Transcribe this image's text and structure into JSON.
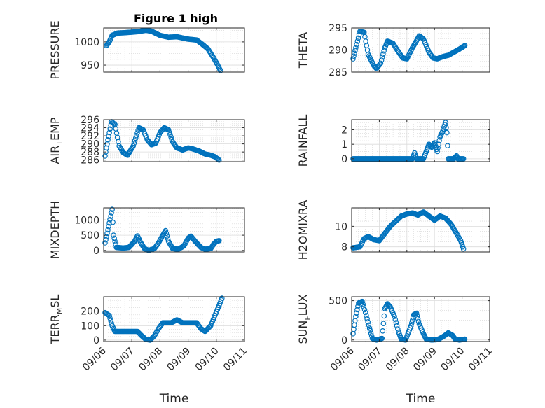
{
  "figure": {
    "title": "Figure 1 high",
    "marker_color": "#0072BD"
  },
  "chart_data": [
    {
      "type": "scatter",
      "ylabel": "PRESSURE",
      "xlim": [
        0,
        5
      ],
      "ylim": [
        935,
        1030
      ],
      "yticks": [
        950,
        1000
      ],
      "xticks": [
        0,
        1,
        2,
        3,
        4,
        5
      ],
      "xticklabels": [],
      "xlabel": "",
      "grid": true,
      "keypoints": [
        [
          0.1,
          992
        ],
        [
          0.2,
          1000
        ],
        [
          0.3,
          1014
        ],
        [
          0.5,
          1019
        ],
        [
          0.8,
          1020
        ],
        [
          1.2,
          1022
        ],
        [
          1.5,
          1025
        ],
        [
          1.7,
          1023
        ],
        [
          2.0,
          1014
        ],
        [
          2.3,
          1010
        ],
        [
          2.6,
          1011
        ],
        [
          3.0,
          1006
        ],
        [
          3.3,
          1004
        ],
        [
          3.5,
          995
        ],
        [
          3.7,
          985
        ],
        [
          3.9,
          966
        ],
        [
          4.05,
          950
        ],
        [
          4.15,
          938
        ]
      ]
    },
    {
      "type": "scatter",
      "ylabel": "THETA",
      "xlim": [
        0,
        5
      ],
      "ylim": [
        285,
        295
      ],
      "yticks": [
        285,
        290,
        295
      ],
      "xticks": [
        0,
        1,
        2,
        3,
        4,
        5
      ],
      "xticklabels": [],
      "xlabel": "",
      "grid": true,
      "keypoints": [
        [
          0.05,
          288
        ],
        [
          0.15,
          290.5
        ],
        [
          0.3,
          294.2
        ],
        [
          0.45,
          294
        ],
        [
          0.6,
          289
        ],
        [
          0.8,
          286.5
        ],
        [
          0.9,
          285.8
        ],
        [
          1.05,
          287
        ],
        [
          1.2,
          290.5
        ],
        [
          1.3,
          292
        ],
        [
          1.5,
          291.5
        ],
        [
          1.65,
          290
        ],
        [
          1.85,
          288.2
        ],
        [
          2.0,
          288
        ],
        [
          2.2,
          290.5
        ],
        [
          2.45,
          293.2
        ],
        [
          2.6,
          292.5
        ],
        [
          2.8,
          289.5
        ],
        [
          2.95,
          288.2
        ],
        [
          3.1,
          288
        ],
        [
          3.3,
          288.5
        ],
        [
          3.5,
          288.8
        ],
        [
          3.7,
          289.5
        ],
        [
          3.9,
          290.2
        ],
        [
          4.1,
          291
        ]
      ]
    },
    {
      "type": "scatter",
      "ylabel": "AIR_TEMP",
      "xlim": [
        0,
        5
      ],
      "ylim": [
        285.6,
        296
      ],
      "yticks": [
        286,
        288,
        290,
        292,
        294,
        296
      ],
      "xticks": [
        0,
        1,
        2,
        3,
        4,
        5
      ],
      "xticklabels": [],
      "xlabel": "",
      "grid": true,
      "keypoints": [
        [
          0.05,
          287
        ],
        [
          0.15,
          291
        ],
        [
          0.28,
          295.5
        ],
        [
          0.4,
          294.8
        ],
        [
          0.55,
          289.5
        ],
        [
          0.7,
          287.8
        ],
        [
          0.85,
          287.2
        ],
        [
          1.05,
          289.5
        ],
        [
          1.25,
          294
        ],
        [
          1.4,
          293.5
        ],
        [
          1.55,
          291
        ],
        [
          1.7,
          289.8
        ],
        [
          1.85,
          290.2
        ],
        [
          2.0,
          292.8
        ],
        [
          2.15,
          294
        ],
        [
          2.3,
          293.5
        ],
        [
          2.45,
          290.5
        ],
        [
          2.6,
          289
        ],
        [
          2.8,
          288.5
        ],
        [
          3.0,
          289
        ],
        [
          3.15,
          288.8
        ],
        [
          3.4,
          288.2
        ],
        [
          3.6,
          287.5
        ],
        [
          3.8,
          287.2
        ],
        [
          3.95,
          286.8
        ],
        [
          4.1,
          286
        ]
      ]
    },
    {
      "type": "scatter",
      "ylabel": "RAINFALL",
      "xlim": [
        0,
        5
      ],
      "ylim": [
        -0.2,
        2.7
      ],
      "yticks": [
        0,
        1,
        2
      ],
      "xticks": [
        0,
        1,
        2,
        3,
        4,
        5
      ],
      "xticklabels": [],
      "xlabel": "",
      "grid": true,
      "keypoints": [
        [
          0.05,
          0
        ],
        [
          2.2,
          0
        ],
        [
          2.28,
          0.4
        ],
        [
          2.35,
          0
        ],
        [
          2.6,
          0
        ],
        [
          2.7,
          0.5
        ],
        [
          2.8,
          1.0
        ],
        [
          2.9,
          0.8
        ],
        [
          3.0,
          1.1
        ],
        [
          3.1,
          0.5
        ],
        [
          3.2,
          1.5
        ],
        [
          3.3,
          1.9
        ],
        [
          3.4,
          2.5
        ],
        [
          3.45,
          1.8
        ],
        [
          3.5,
          0
        ],
        [
          3.7,
          0
        ],
        [
          3.8,
          0.2
        ],
        [
          3.85,
          0
        ],
        [
          4.05,
          0
        ]
      ]
    },
    {
      "type": "scatter",
      "ylabel": "MIXDEPTH",
      "xlim": [
        0,
        5
      ],
      "ylim": [
        -50,
        1400
      ],
      "yticks": [
        0,
        500,
        1000
      ],
      "xticks": [
        0,
        1,
        2,
        3,
        4,
        5
      ],
      "xticklabels": [],
      "xlabel": "",
      "grid": true,
      "keypoints": [
        [
          0.05,
          250
        ],
        [
          0.1,
          450
        ],
        [
          0.2,
          900
        ],
        [
          0.3,
          1350
        ],
        [
          0.35,
          500
        ],
        [
          0.45,
          100
        ],
        [
          0.7,
          80
        ],
        [
          0.9,
          100
        ],
        [
          1.1,
          300
        ],
        [
          1.2,
          480
        ],
        [
          1.3,
          280
        ],
        [
          1.45,
          60
        ],
        [
          1.6,
          0
        ],
        [
          1.8,
          60
        ],
        [
          1.95,
          250
        ],
        [
          2.1,
          500
        ],
        [
          2.2,
          650
        ],
        [
          2.3,
          300
        ],
        [
          2.45,
          60
        ],
        [
          2.65,
          40
        ],
        [
          2.85,
          150
        ],
        [
          3.0,
          400
        ],
        [
          3.1,
          470
        ],
        [
          3.25,
          300
        ],
        [
          3.45,
          100
        ],
        [
          3.6,
          40
        ],
        [
          3.8,
          60
        ],
        [
          3.9,
          200
        ],
        [
          4.0,
          300
        ],
        [
          4.1,
          320
        ]
      ]
    },
    {
      "type": "scatter",
      "ylabel": "H2OMIXRA",
      "xlim": [
        0,
        5
      ],
      "ylim": [
        7.5,
        11.8
      ],
      "yticks": [
        8,
        10
      ],
      "xticks": [
        0,
        1,
        2,
        3,
        4,
        5
      ],
      "xticklabels": [],
      "xlabel": "",
      "grid": true,
      "keypoints": [
        [
          0.05,
          7.9
        ],
        [
          0.3,
          8.0
        ],
        [
          0.45,
          8.8
        ],
        [
          0.6,
          9.0
        ],
        [
          0.8,
          8.7
        ],
        [
          1.0,
          8.6
        ],
        [
          1.2,
          9.3
        ],
        [
          1.4,
          10.0
        ],
        [
          1.6,
          10.5
        ],
        [
          1.8,
          11.0
        ],
        [
          2.0,
          11.2
        ],
        [
          2.2,
          11.3
        ],
        [
          2.4,
          11.1
        ],
        [
          2.6,
          11.4
        ],
        [
          2.8,
          11.0
        ],
        [
          3.0,
          10.6
        ],
        [
          3.2,
          11.0
        ],
        [
          3.4,
          10.8
        ],
        [
          3.6,
          10.2
        ],
        [
          3.8,
          9.3
        ],
        [
          3.95,
          8.6
        ],
        [
          4.05,
          7.8
        ]
      ]
    },
    {
      "type": "scatter",
      "ylabel": "TERR_MSL",
      "xlim": [
        0,
        5
      ],
      "ylim": [
        -10,
        300
      ],
      "yticks": [
        0,
        100,
        200
      ],
      "xticks": [
        0,
        1,
        2,
        3,
        4,
        5
      ],
      "xticklabels": [
        "09/06",
        "09/07",
        "09/08",
        "09/09",
        "09/10",
        "09/11"
      ],
      "xlabel": "Time",
      "grid": true,
      "keypoints": [
        [
          0.05,
          190
        ],
        [
          0.2,
          170
        ],
        [
          0.3,
          100
        ],
        [
          0.4,
          60
        ],
        [
          0.8,
          60
        ],
        [
          1.2,
          60
        ],
        [
          1.35,
          30
        ],
        [
          1.5,
          5
        ],
        [
          1.65,
          0
        ],
        [
          1.8,
          30
        ],
        [
          1.95,
          80
        ],
        [
          2.1,
          120
        ],
        [
          2.4,
          120
        ],
        [
          2.6,
          140
        ],
        [
          2.8,
          120
        ],
        [
          3.1,
          120
        ],
        [
          3.3,
          120
        ],
        [
          3.45,
          80
        ],
        [
          3.6,
          60
        ],
        [
          3.8,
          100
        ],
        [
          3.95,
          170
        ],
        [
          4.1,
          240
        ],
        [
          4.2,
          290
        ]
      ]
    },
    {
      "type": "scatter",
      "ylabel": "SUN_FLUX",
      "xlim": [
        0,
        5
      ],
      "ylim": [
        -20,
        550
      ],
      "yticks": [
        0,
        500
      ],
      "xticks": [
        0,
        1,
        2,
        3,
        4,
        5
      ],
      "xticklabels": [
        "09/06",
        "09/07",
        "09/08",
        "09/09",
        "09/10",
        "09/11"
      ],
      "xlabel": "Time",
      "grid": true,
      "keypoints": [
        [
          0.05,
          80
        ],
        [
          0.15,
          300
        ],
        [
          0.25,
          470
        ],
        [
          0.38,
          490
        ],
        [
          0.5,
          350
        ],
        [
          0.65,
          150
        ],
        [
          0.75,
          20
        ],
        [
          0.9,
          0
        ],
        [
          1.1,
          20
        ],
        [
          1.2,
          400
        ],
        [
          1.3,
          460
        ],
        [
          1.4,
          420
        ],
        [
          1.55,
          300
        ],
        [
          1.7,
          100
        ],
        [
          1.8,
          10
        ],
        [
          1.95,
          0
        ],
        [
          2.15,
          180
        ],
        [
          2.25,
          320
        ],
        [
          2.35,
          340
        ],
        [
          2.45,
          200
        ],
        [
          2.6,
          80
        ],
        [
          2.7,
          10
        ],
        [
          2.9,
          0
        ],
        [
          3.1,
          5
        ],
        [
          3.2,
          20
        ],
        [
          3.35,
          50
        ],
        [
          3.5,
          90
        ],
        [
          3.65,
          60
        ],
        [
          3.75,
          10
        ],
        [
          3.9,
          0
        ],
        [
          4.1,
          10
        ]
      ]
    }
  ]
}
